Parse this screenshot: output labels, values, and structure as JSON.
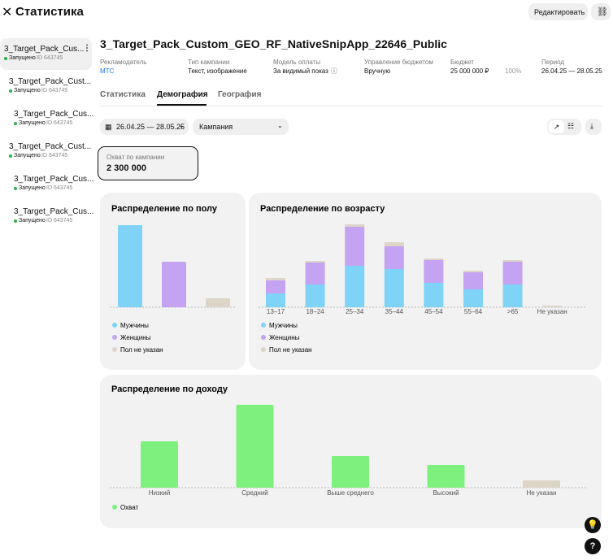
{
  "header": {
    "title": "Статистика",
    "edit_button": "Редактировать"
  },
  "sidebar": {
    "items": [
      {
        "name": "3_Target_Pack_Cus...",
        "status": "Запущено",
        "id": "ID 643745"
      },
      {
        "name": "3_Target_Pack_Cust...",
        "status": "Запущено",
        "id": "ID 643745"
      },
      {
        "name": "3_Target_Pack_Cus...",
        "status": "Запущено",
        "id": "ID 643745"
      },
      {
        "name": "3_Target_Pack_Cust...",
        "status": "Запущено",
        "id": "ID 643745"
      },
      {
        "name": "3_Target_Pack_Cus...",
        "status": "Запущено",
        "id": "ID 643745"
      },
      {
        "name": "3_Target_Pack_Cus...",
        "status": "Запущено",
        "id": "ID 643745"
      }
    ]
  },
  "campaign": {
    "title": "3_Target_Pack_Custom_GEO_RF_NativeSnipApp_22646_Public",
    "fields": [
      {
        "label": "Рекламодатель",
        "value": "МТС"
      },
      {
        "label": "Тип кампании",
        "value": "Текст, изображение"
      },
      {
        "label": "Модель оплаты",
        "value": "За видимый показ"
      },
      {
        "label": "Управление бюджетом",
        "value": "Вручную"
      },
      {
        "label": "Бюджет",
        "value": "25 000 000 ₽",
        "extra": "100%"
      },
      {
        "label": "Период",
        "value": "26.04.25 — 28.05.25"
      }
    ]
  },
  "tabs": {
    "items": [
      "Статистика",
      "Демография",
      "География"
    ],
    "active": 1
  },
  "filters": {
    "date": "26.04.25 — 28.05.25",
    "campaign": "Кампания"
  },
  "reach": {
    "label": "Охват по кампании",
    "value": "2 300 000"
  },
  "chart_data": [
    {
      "type": "bar",
      "title": "Распределение по полу",
      "categories": [
        null
      ],
      "ylim": [
        0,
        110
      ],
      "series": [
        {
          "name": "Мужчины",
          "color": "#7fd3f7",
          "values": [
            101
          ]
        },
        {
          "name": "Женщины",
          "color": "#c3a3f2",
          "values": [
            56
          ]
        },
        {
          "name": "Пол не указан",
          "color": "#ddd5c7",
          "values": [
            11
          ]
        }
      ]
    },
    {
      "type": "stacked_bar",
      "title": "Распределение по возрасту",
      "categories": [
        "13–17",
        "18–24",
        "25–34",
        "35–44",
        "45–54",
        "55–64",
        ">65",
        "Не указан"
      ],
      "ylim": [
        0,
        110
      ],
      "series": [
        {
          "name": "Мужчины",
          "color": "#7fd3f7",
          "values": [
            17,
            28,
            51,
            47,
            30,
            22,
            28,
            0
          ]
        },
        {
          "name": "Женщины",
          "color": "#c3a3f2",
          "values": [
            16,
            27,
            48,
            28,
            28,
            21,
            28,
            0
          ]
        },
        {
          "name": "Пол не указан",
          "color": "#ddd5c7",
          "values": [
            3,
            2,
            3,
            5,
            2,
            2,
            2,
            2
          ]
        }
      ]
    },
    {
      "type": "bar",
      "title": "Распределение по доходу",
      "categories": [
        "Низкий",
        "Средний",
        "Выше среднего",
        "Высокий",
        "Не указан"
      ],
      "ylim": [
        0,
        110
      ],
      "series": [
        {
          "name": "Охват",
          "color": "#7ef07e",
          "values": [
            57,
            102,
            39,
            28,
            9
          ],
          "colors": [
            "#7ef07e",
            "#7ef07e",
            "#7ef07e",
            "#7ef07e",
            "#ddd5c7"
          ]
        }
      ]
    }
  ]
}
